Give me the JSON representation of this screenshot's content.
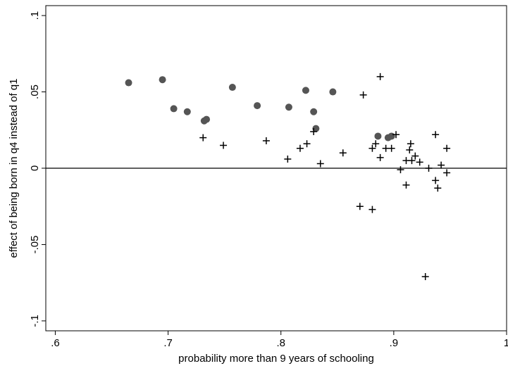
{
  "chart_data": {
    "type": "scatter",
    "x_label": "probability more than 9 years of schooling",
    "y_label": "effect of being born in q4 instead of q1",
    "xlim": [
      0.5916,
      1.0
    ],
    "ylim": [
      -0.1065,
      0.1065
    ],
    "xticks": [
      {
        "value": 0.6,
        "label": ".6"
      },
      {
        "value": 0.7,
        "label": ".7"
      },
      {
        "value": 0.8,
        "label": ".8"
      },
      {
        "value": 0.9,
        "label": ".9"
      },
      1
    ],
    "yticks": [
      {
        "value": -0.1,
        "label": "-.1"
      },
      {
        "value": -0.05,
        "label": "-.05"
      },
      0,
      {
        "value": 0.05,
        "label": ".05"
      },
      {
        "value": 0.1,
        "label": ".1"
      }
    ],
    "yline": 0,
    "series": [
      {
        "marker": "circle",
        "color": "#555555",
        "x": [
          0.665,
          0.695,
          0.705,
          0.717,
          0.732,
          0.734,
          0.757,
          0.779,
          0.807,
          0.822,
          0.829,
          0.831,
          0.846,
          0.886,
          0.895,
          0.898
        ],
        "values": [
          0.056,
          0.058,
          0.039,
          0.037,
          0.031,
          0.032,
          0.053,
          0.041,
          0.04,
          0.051,
          0.037,
          0.026,
          0.05,
          0.021,
          0.02,
          0.021
        ]
      },
      {
        "marker": "plus",
        "color": "#000000",
        "x": [
          0.731,
          0.749,
          0.787,
          0.806,
          0.817,
          0.823,
          0.829,
          0.835,
          0.855,
          0.873,
          0.888,
          0.87,
          0.881,
          0.881,
          0.884,
          0.888,
          0.893,
          0.898,
          0.902,
          0.906,
          0.911,
          0.911,
          0.914,
          0.915,
          0.916,
          0.919,
          0.923,
          0.931,
          0.937,
          0.937,
          0.939,
          0.942,
          0.947,
          0.947,
          0.928
        ],
        "values": [
          0.02,
          0.015,
          0.018,
          0.006,
          0.013,
          0.016,
          0.024,
          0.003,
          0.01,
          0.048,
          0.06,
          -0.025,
          -0.027,
          0.013,
          0.016,
          0.007,
          0.013,
          0.013,
          0.022,
          -0.001,
          -0.011,
          0.005,
          0.012,
          0.016,
          0.005,
          0.008,
          0.004,
          0.0,
          0.022,
          -0.008,
          -0.013,
          0.002,
          0.013,
          -0.003,
          -0.071
        ]
      }
    ]
  }
}
